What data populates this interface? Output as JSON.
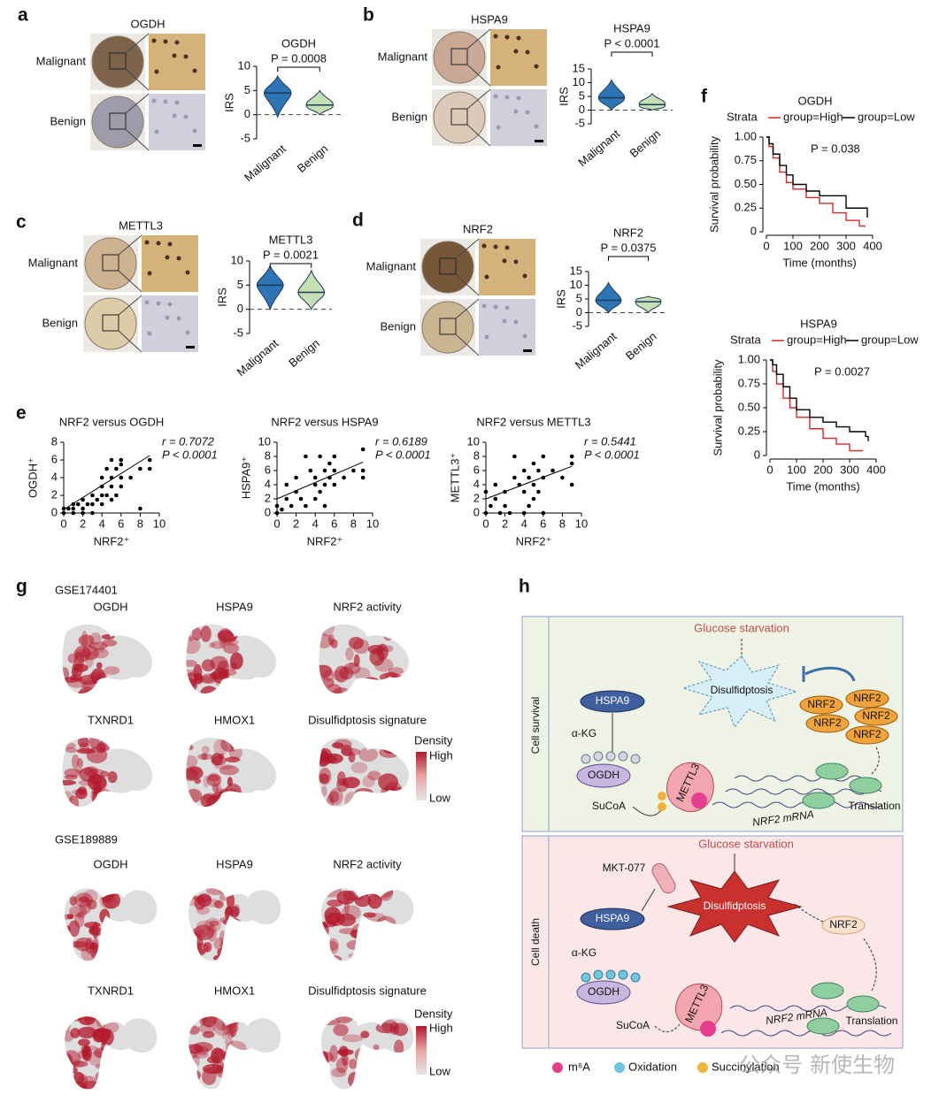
{
  "panel_labels": [
    "a",
    "b",
    "c",
    "d",
    "e",
    "f",
    "g",
    "h"
  ],
  "ihc": [
    {
      "title": "OGDH",
      "rows": [
        "Malignant",
        "Benign"
      ]
    },
    {
      "title": "HSPA9",
      "rows": [
        "Malignant",
        "Benign"
      ]
    },
    {
      "title": "METTL3",
      "rows": [
        "Malignant",
        "Benign"
      ]
    },
    {
      "title": "NRF2",
      "rows": [
        "Malignant",
        "Benign"
      ]
    }
  ],
  "chart_data": [
    {
      "type": "violin",
      "title": "OGDH",
      "annotation": "P = 0.0008",
      "ylabel": "IRS",
      "categories": [
        "Malignant",
        "Benign"
      ],
      "values": [
        4.5,
        2
      ],
      "min": [
        -0.5,
        0
      ],
      "max": [
        8,
        5
      ],
      "colors": [
        "#2e75b6",
        "#c5e0b4"
      ],
      "ylim": [
        -5,
        10
      ],
      "yticks": [
        -5,
        0,
        5,
        10
      ],
      "reference_line": 0
    },
    {
      "type": "violin",
      "title": "HSPA9",
      "annotation": "P < 0.0001",
      "ylabel": "IRS",
      "categories": [
        "Malignant",
        "Benign"
      ],
      "values": [
        4.5,
        2
      ],
      "min": [
        0,
        0
      ],
      "max": [
        11,
        6
      ],
      "colors": [
        "#2e75b6",
        "#c5e0b4"
      ],
      "ylim": [
        -5,
        15
      ],
      "yticks": [
        -5,
        0,
        5,
        10,
        15
      ],
      "reference_line": 0
    },
    {
      "type": "violin",
      "title": "METTL3",
      "annotation": "P = 0.0021",
      "ylabel": "IRS",
      "categories": [
        "Malignant",
        "Benign"
      ],
      "values": [
        5,
        3.5
      ],
      "min": [
        0,
        0
      ],
      "max": [
        9,
        8
      ],
      "colors": [
        "#2e75b6",
        "#c5e0b4"
      ],
      "ylim": [
        -5,
        10
      ],
      "yticks": [
        -5,
        0,
        5,
        10
      ],
      "reference_line": 0
    },
    {
      "type": "violin",
      "title": "NRF2",
      "annotation": "P = 0.0375",
      "ylabel": "IRS",
      "categories": [
        "Malignant",
        "Benign"
      ],
      "values": [
        4.5,
        4
      ],
      "min": [
        0,
        0
      ],
      "max": [
        11,
        6
      ],
      "colors": [
        "#2e75b6",
        "#c5e0b4"
      ],
      "ylim": [
        -5,
        15
      ],
      "yticks": [
        -5,
        0,
        5,
        10,
        15
      ],
      "reference_line": 0
    },
    {
      "type": "scatter",
      "title": "NRF2 versus OGDH",
      "annotations": [
        "r = 0.7072",
        "P < 0.0001"
      ],
      "xlabel": "NRF2⁺",
      "ylabel": "OGDH⁺",
      "color": "#000000",
      "x": [
        0,
        0,
        0.5,
        1,
        1,
        1.5,
        2,
        2,
        2.5,
        3,
        3,
        3.5,
        4,
        4,
        4,
        4.5,
        4.5,
        5,
        5,
        5,
        5.5,
        5.5,
        6,
        6,
        6,
        7,
        8,
        8,
        9,
        9,
        3,
        4,
        5,
        6,
        1,
        2
      ],
      "values": [
        0,
        0.5,
        0.5,
        0,
        1,
        1,
        0.5,
        1.5,
        1,
        1,
        2,
        1.5,
        2,
        3,
        4,
        2,
        5,
        3,
        4,
        6,
        2,
        5,
        4,
        6,
        3,
        4,
        5,
        0.5,
        5,
        6,
        0,
        1,
        1.5,
        5.5,
        0.5,
        0
      ],
      "trendline": {
        "x": [
          0,
          9
        ],
        "values": [
          0.4,
          6.5
        ]
      },
      "xlim": [
        0,
        10
      ],
      "xticks": [
        0,
        2,
        4,
        6,
        8,
        10
      ],
      "ylim": [
        0,
        8
      ],
      "yticks": [
        0,
        2,
        4,
        6,
        8
      ]
    },
    {
      "type": "scatter",
      "title": "NRF2 versus HSPA9",
      "annotations": [
        "r = 0.6189",
        "P < 0.0001"
      ],
      "xlabel": "NRF2⁺",
      "ylabel": "HSPA9⁺",
      "color": "#000000",
      "x": [
        0,
        0,
        0.5,
        1,
        1,
        1.5,
        2,
        2,
        2.5,
        3,
        3,
        3.5,
        4,
        4,
        4,
        4.5,
        4.5,
        5,
        5,
        5,
        5.5,
        5.5,
        6,
        6,
        6,
        7,
        8,
        9,
        9,
        9
      ],
      "values": [
        0,
        1,
        0.5,
        2,
        4,
        1,
        5,
        3,
        2,
        1,
        8,
        6,
        4,
        2,
        5,
        8,
        3,
        6,
        4,
        1,
        5,
        7,
        4,
        6,
        8,
        5,
        6,
        9,
        5,
        6
      ],
      "trendline": {
        "x": [
          0,
          9
        ],
        "values": [
          2,
          7.2
        ]
      },
      "xlim": [
        0,
        10
      ],
      "xticks": [
        0,
        2,
        4,
        6,
        8,
        10
      ],
      "ylim": [
        0,
        10
      ],
      "yticks": [
        0,
        2,
        4,
        6,
        8,
        10
      ]
    },
    {
      "type": "scatter",
      "title": "NRF2 versus METTL3",
      "annotations": [
        "r = 0.5441",
        "P < 0.0001"
      ],
      "xlabel": "NRF2⁺",
      "ylabel": "METTL3⁺",
      "color": "#000000",
      "x": [
        0,
        0,
        0.5,
        1,
        1,
        1.5,
        2,
        2,
        2.5,
        3,
        3,
        3.5,
        4,
        4,
        4,
        4.5,
        4.5,
        5,
        5,
        5,
        5.5,
        5.5,
        6,
        6,
        6,
        7,
        8,
        9,
        9,
        9
      ],
      "values": [
        0,
        3,
        1,
        2,
        4,
        0,
        3,
        1,
        0,
        5,
        8,
        4,
        3,
        6,
        0,
        5,
        1,
        4,
        7,
        2,
        6,
        3,
        5,
        8,
        0,
        6,
        5,
        7,
        4,
        8
      ],
      "trendline": {
        "x": [
          0,
          9
        ],
        "values": [
          2,
          6.6
        ]
      },
      "xlim": [
        0,
        10
      ],
      "xticks": [
        0,
        2,
        4,
        6,
        8,
        10
      ],
      "ylim": [
        0,
        10
      ],
      "yticks": [
        0,
        2,
        4,
        6,
        8,
        10
      ]
    },
    {
      "type": "survival",
      "title": "OGDH",
      "legend_title": "Strata",
      "annotation": "P = 0.038",
      "xlabel": "Time (months)",
      "ylabel": "Survival probability",
      "series": [
        {
          "name": "group=High",
          "color": "#d62728",
          "x": [
            0,
            10,
            25,
            50,
            75,
            100,
            150,
            200,
            250,
            300,
            350,
            370
          ],
          "values": [
            1,
            0.9,
            0.78,
            0.63,
            0.52,
            0.45,
            0.36,
            0.3,
            0.2,
            0.12,
            0.06,
            0.05
          ]
        },
        {
          "name": "group=Low",
          "color": "#000000",
          "x": [
            0,
            10,
            25,
            50,
            75,
            100,
            150,
            200,
            240,
            300,
            360,
            380
          ],
          "values": [
            1,
            0.93,
            0.82,
            0.7,
            0.6,
            0.5,
            0.43,
            0.38,
            0.38,
            0.25,
            0.25,
            0.15
          ]
        }
      ],
      "xlim": [
        0,
        400
      ],
      "xticks": [
        0,
        100,
        200,
        300,
        400
      ],
      "ylim": [
        0,
        1
      ],
      "yticks": [
        0,
        0.25,
        {
          "value": 0.5,
          "label": "0.50"
        },
        0.75,
        {
          "value": 1,
          "label": "1.00"
        }
      ]
    },
    {
      "type": "survival",
      "title": "HSPA9",
      "legend_title": "Strata",
      "annotation": "P = 0.0027",
      "xlabel": "Time (months)",
      "ylabel": "Survival probability",
      "series": [
        {
          "name": "group=High",
          "color": "#d62728",
          "x": [
            0,
            10,
            25,
            50,
            75,
            100,
            150,
            200,
            250,
            300,
            350
          ],
          "values": [
            1,
            0.88,
            0.75,
            0.6,
            0.5,
            0.4,
            0.28,
            0.18,
            0.12,
            0.05,
            0.05
          ]
        },
        {
          "name": "group=Low",
          "color": "#000000",
          "x": [
            0,
            10,
            25,
            50,
            75,
            100,
            150,
            200,
            250,
            300,
            360,
            370
          ],
          "values": [
            1,
            0.95,
            0.85,
            0.72,
            0.6,
            0.48,
            0.4,
            0.35,
            0.3,
            0.25,
            0.2,
            0.15
          ]
        }
      ],
      "xlim": [
        0,
        400
      ],
      "xticks": [
        0,
        100,
        200,
        300,
        400
      ],
      "ylim": [
        0,
        1
      ],
      "yticks": [
        0,
        0.25,
        {
          "value": 0.5,
          "label": "0.50"
        },
        0.75,
        {
          "value": 1,
          "label": "1.00"
        }
      ]
    }
  ],
  "umap": {
    "datasets": [
      {
        "name": "GSE174401",
        "panels": [
          "OGDH",
          "HSPA9",
          "NRF2 activity",
          "TXNRD1",
          "HMOX1",
          "Disulfidptosis signature"
        ]
      },
      {
        "name": "GSE189889",
        "panels": [
          "OGDH",
          "HSPA9",
          "NRF2 activity",
          "TXNRD1",
          "HMOX1",
          "Disulfidptosis signature"
        ]
      }
    ],
    "colorbar": {
      "title": "Density",
      "high": "High",
      "low": "Low"
    }
  },
  "diagram": {
    "survival": {
      "label": "Cell survival",
      "stress": "Glucose starvation",
      "death_node": "Disulfidptosis",
      "hspa9": "HSPA9",
      "akg": "α-KG",
      "ogdh": "OGDH",
      "sucoa": "SuCoA",
      "mettl3": "METTL3",
      "nrf2": "NRF2",
      "mrna": "NRF2 mRNA",
      "translation": "Translation"
    },
    "death": {
      "label": "Cell death",
      "stress": "Glucose starvation",
      "drug": "MKT-077",
      "death_node": "Disulfidptosis",
      "nrf2": "NRF2",
      "hspa9": "HSPA9",
      "akg": "α-KG",
      "ogdh": "OGDH",
      "sucoa": "SuCoA",
      "mettl3": "METTL3",
      "mrna": "NRF2 mRNA",
      "translation": "Translation"
    },
    "legend": [
      "m⁶A",
      "Oxidation",
      "Succinylation"
    ]
  },
  "watermark": [
    "公众号",
    "新使生物"
  ]
}
